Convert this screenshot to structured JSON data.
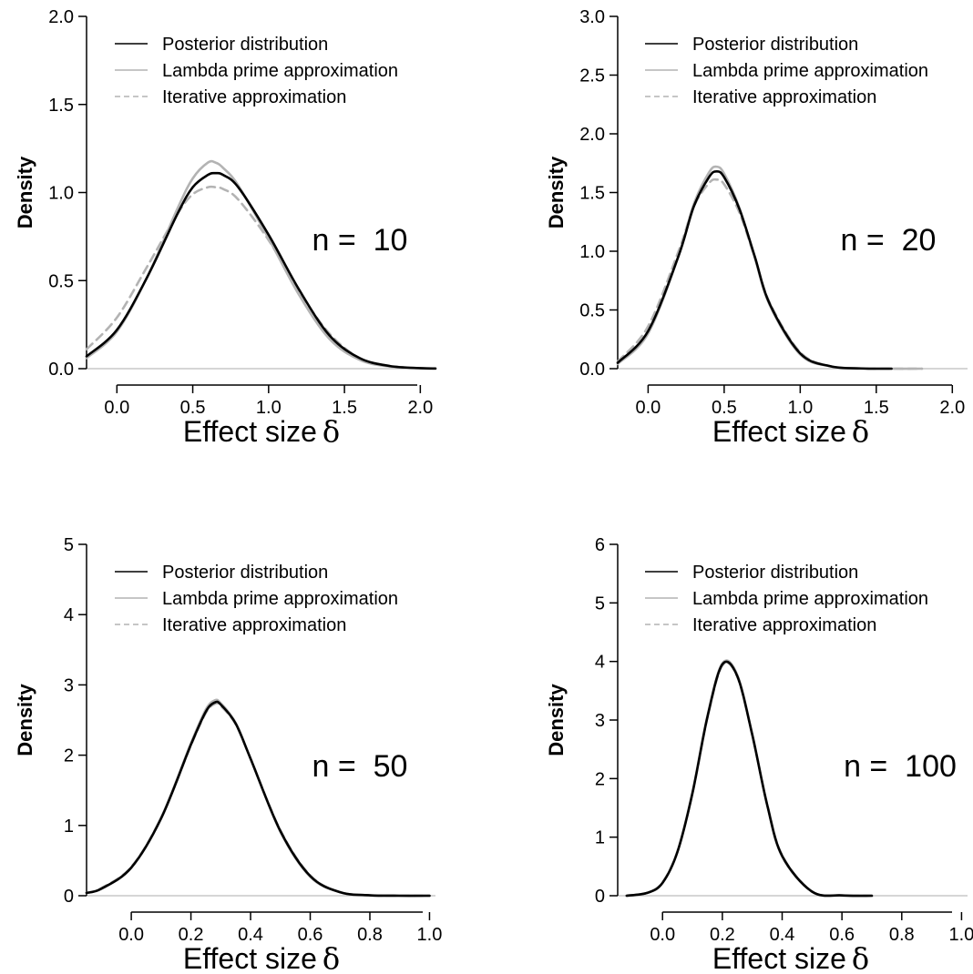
{
  "chart_data": [
    {
      "type": "line",
      "xlabel": "Effect size",
      "xlabel_symbol": "δ",
      "ylabel": "Density",
      "annotation": "n =  10",
      "xlim": [
        -0.2,
        2.1
      ],
      "ylim": [
        0,
        2.0
      ],
      "xticks": [
        0.0,
        0.5,
        1.0,
        1.5,
        2.0
      ],
      "xtick_labels": [
        "0.0",
        "0.5",
        "1.0",
        "1.5",
        "2.0"
      ],
      "yticks": [
        0.0,
        0.5,
        1.0,
        1.5,
        2.0
      ],
      "ytick_labels": [
        "0.0",
        "0.5",
        "1.0",
        "1.5",
        "2.0"
      ],
      "legend_position": "top-left",
      "series": [
        {
          "name": "Posterior distribution",
          "color": "#000000",
          "dash": "solid",
          "x": [
            -0.2,
            0.0,
            0.2,
            0.4,
            0.5,
            0.6,
            0.65,
            0.7,
            0.8,
            1.0,
            1.2,
            1.4,
            1.6,
            1.8,
            2.0,
            2.1
          ],
          "y": [
            0.07,
            0.22,
            0.52,
            0.88,
            1.03,
            1.1,
            1.11,
            1.1,
            1.03,
            0.76,
            0.45,
            0.19,
            0.06,
            0.015,
            0.003,
            0.001
          ]
        },
        {
          "name": "Lambda prime approximation",
          "color": "#b3b3b3",
          "dash": "solid",
          "x": [
            -0.2,
            0.0,
            0.2,
            0.4,
            0.5,
            0.6,
            0.65,
            0.7,
            0.8,
            1.0,
            1.2,
            1.4,
            1.6,
            1.8,
            2.0,
            2.1
          ],
          "y": [
            0.06,
            0.21,
            0.52,
            0.91,
            1.08,
            1.17,
            1.17,
            1.14,
            1.04,
            0.74,
            0.42,
            0.17,
            0.05,
            0.012,
            0.002,
            0.001
          ]
        },
        {
          "name": "Iterative approximation",
          "color": "#b3b3b3",
          "dash": "dashed",
          "x": [
            -0.2,
            0.0,
            0.2,
            0.4,
            0.5,
            0.6,
            0.65,
            0.7,
            0.8,
            1.0,
            1.2,
            1.4,
            1.6,
            1.8,
            2.0,
            2.1
          ],
          "y": [
            0.11,
            0.29,
            0.58,
            0.88,
            0.99,
            1.03,
            1.03,
            1.02,
            0.96,
            0.73,
            0.44,
            0.2,
            0.06,
            0.015,
            0.003,
            0.001
          ]
        }
      ]
    },
    {
      "type": "line",
      "xlabel": "Effect size",
      "xlabel_symbol": "δ",
      "ylabel": "Density",
      "annotation": "n =  20",
      "xlim": [
        -0.2,
        2.1
      ],
      "ylim": [
        0,
        3.0
      ],
      "xticks": [
        0.0,
        0.5,
        1.0,
        1.5,
        2.0
      ],
      "xtick_labels": [
        "0.0",
        "0.5",
        "1.0",
        "1.5",
        "2.0"
      ],
      "yticks": [
        0.0,
        0.5,
        1.0,
        1.5,
        2.0,
        2.5,
        3.0
      ],
      "ytick_labels": [
        "0.0",
        "0.5",
        "1.0",
        "1.5",
        "2.0",
        "2.5",
        "3.0"
      ],
      "legend_position": "top-left",
      "series": [
        {
          "name": "Posterior distribution",
          "color": "#000000",
          "dash": "solid",
          "x": [
            -0.2,
            0.0,
            0.2,
            0.3,
            0.4,
            0.45,
            0.5,
            0.6,
            0.7,
            0.8,
            1.0,
            1.2,
            1.4,
            1.6
          ],
          "y": [
            0.05,
            0.32,
            0.96,
            1.38,
            1.63,
            1.68,
            1.63,
            1.36,
            0.96,
            0.55,
            0.13,
            0.02,
            0.002,
            0.0
          ]
        },
        {
          "name": "Lambda prime approximation",
          "color": "#b3b3b3",
          "dash": "solid",
          "x": [
            -0.2,
            0.0,
            0.2,
            0.3,
            0.4,
            0.45,
            0.5,
            0.6,
            0.7,
            0.8,
            1.0,
            1.2,
            1.4,
            1.6,
            1.8
          ],
          "y": [
            0.04,
            0.3,
            0.96,
            1.4,
            1.67,
            1.72,
            1.66,
            1.37,
            0.95,
            0.54,
            0.12,
            0.02,
            0.002,
            0.0,
            0.0
          ]
        },
        {
          "name": "Iterative approximation",
          "color": "#b3b3b3",
          "dash": "dashed",
          "x": [
            -0.2,
            0.0,
            0.2,
            0.3,
            0.4,
            0.45,
            0.5,
            0.6,
            0.7,
            0.8,
            1.0,
            1.2,
            1.4,
            1.6,
            1.8
          ],
          "y": [
            0.06,
            0.36,
            1.0,
            1.38,
            1.58,
            1.61,
            1.57,
            1.33,
            0.95,
            0.56,
            0.14,
            0.02,
            0.002,
            0.0,
            0.0
          ]
        }
      ]
    },
    {
      "type": "line",
      "xlabel": "Effect size",
      "xlabel_symbol": "δ",
      "ylabel": "Density",
      "annotation": "n =  50",
      "xlim": [
        -0.15,
        1.02
      ],
      "ylim": [
        0,
        5
      ],
      "xticks": [
        0.0,
        0.2,
        0.4,
        0.6,
        0.8,
        1.0
      ],
      "xtick_labels": [
        "0.0",
        "0.2",
        "0.4",
        "0.6",
        "0.8",
        "1.0"
      ],
      "yticks": [
        0,
        1,
        2,
        3,
        4,
        5
      ],
      "ytick_labels": [
        "0",
        "1",
        "2",
        "3",
        "4",
        "5"
      ],
      "legend_position": "top-left",
      "series": [
        {
          "name": "Posterior distribution",
          "color": "#000000",
          "dash": "solid",
          "x": [
            -0.15,
            -0.1,
            0.0,
            0.1,
            0.2,
            0.25,
            0.28,
            0.3,
            0.35,
            0.4,
            0.5,
            0.6,
            0.7,
            0.8,
            0.9,
            1.0
          ],
          "y": [
            0.04,
            0.1,
            0.4,
            1.1,
            2.15,
            2.62,
            2.75,
            2.72,
            2.45,
            1.95,
            0.92,
            0.28,
            0.05,
            0.006,
            0.0,
            0.0
          ]
        },
        {
          "name": "Lambda prime approximation",
          "color": "#b3b3b3",
          "dash": "solid",
          "x": [
            -0.15,
            -0.1,
            0.0,
            0.1,
            0.2,
            0.25,
            0.28,
            0.3,
            0.35,
            0.4,
            0.5,
            0.6,
            0.7,
            0.8,
            0.9,
            1.0
          ],
          "y": [
            0.04,
            0.1,
            0.4,
            1.11,
            2.17,
            2.65,
            2.78,
            2.74,
            2.46,
            1.95,
            0.91,
            0.27,
            0.05,
            0.006,
            0.0,
            0.0
          ]
        },
        {
          "name": "Iterative approximation",
          "color": "#b3b3b3",
          "dash": "dashed",
          "x": [
            -0.15,
            -0.1,
            0.0,
            0.1,
            0.2,
            0.25,
            0.28,
            0.3,
            0.35,
            0.4,
            0.5,
            0.6,
            0.7,
            0.8,
            0.9,
            1.0
          ],
          "y": [
            0.04,
            0.11,
            0.41,
            1.11,
            2.14,
            2.6,
            2.73,
            2.7,
            2.44,
            1.95,
            0.93,
            0.29,
            0.05,
            0.006,
            0.0,
            0.0
          ]
        }
      ]
    },
    {
      "type": "line",
      "xlabel": "Effect size",
      "xlabel_symbol": "δ",
      "ylabel": "Density",
      "annotation": "n =  100",
      "xlim": [
        -0.15,
        1.02
      ],
      "ylim": [
        0,
        6
      ],
      "xticks": [
        0.0,
        0.2,
        0.4,
        0.6,
        0.8,
        1.0
      ],
      "xtick_labels": [
        "0.0",
        "0.2",
        "0.4",
        "0.6",
        "0.8",
        "1.0"
      ],
      "yticks": [
        0,
        1,
        2,
        3,
        4,
        5,
        6
      ],
      "ytick_labels": [
        "0",
        "1",
        "2",
        "3",
        "4",
        "5",
        "6"
      ],
      "legend_position": "top-left",
      "series": [
        {
          "name": "Posterior distribution",
          "color": "#000000",
          "dash": "solid",
          "x": [
            -0.12,
            -0.05,
            0.0,
            0.05,
            0.1,
            0.15,
            0.2,
            0.25,
            0.3,
            0.35,
            0.4,
            0.5,
            0.6,
            0.7
          ],
          "y": [
            0.0,
            0.05,
            0.22,
            0.75,
            1.75,
            3.05,
            3.95,
            3.75,
            2.75,
            1.55,
            0.68,
            0.07,
            0.005,
            0.0
          ]
        },
        {
          "name": "Lambda prime approximation",
          "color": "#b3b3b3",
          "dash": "solid",
          "x": [
            -0.12,
            -0.05,
            0.0,
            0.05,
            0.1,
            0.15,
            0.2,
            0.25,
            0.3,
            0.35,
            0.4,
            0.5,
            0.6,
            0.7
          ],
          "y": [
            0.0,
            0.05,
            0.22,
            0.76,
            1.77,
            3.07,
            3.97,
            3.77,
            2.76,
            1.55,
            0.67,
            0.07,
            0.005,
            0.0
          ]
        },
        {
          "name": "Iterative approximation",
          "color": "#b3b3b3",
          "dash": "dashed",
          "x": [
            -0.12,
            -0.05,
            0.0,
            0.05,
            0.1,
            0.15,
            0.2,
            0.25,
            0.3,
            0.35,
            0.4,
            0.5,
            0.6,
            0.7
          ],
          "y": [
            0.0,
            0.05,
            0.23,
            0.76,
            1.75,
            3.04,
            3.93,
            3.74,
            2.75,
            1.56,
            0.69,
            0.07,
            0.005,
            0.0
          ]
        }
      ]
    }
  ]
}
